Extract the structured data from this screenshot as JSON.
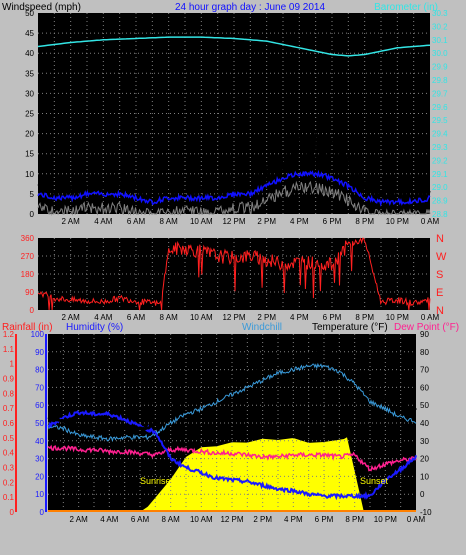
{
  "colors": {
    "background": "#c0c0c0",
    "plot": "#000000",
    "grid": "#808080",
    "windspeed": "#000000",
    "windgust_avg": "#1010ff",
    "wind_low": "#808080",
    "barometer": "#33e5e5",
    "direction": "#ff2020",
    "rainfall": "#ff2020",
    "humidity": "#1a1aff",
    "windchill": "#3a9ad9",
    "temperature": "#000000",
    "dewpoint": "#ff2090",
    "solar": "#ffff00",
    "orange_line": "#ff8000"
  },
  "chart_data": [
    {
      "type": "line",
      "title": "24 hour graph day : June 09 2014",
      "left_axis_label": "Windspeed (mph)",
      "right_axis_label": "Barometer (in)",
      "x_tick_labels": [
        "2 AM",
        "4 AM",
        "6 AM",
        "8 AM",
        "10 AM",
        "12 PM",
        "2 PM",
        "4 PM",
        "6 PM",
        "8 PM",
        "10 PM",
        "0 AM"
      ],
      "y_left_ticks": [
        0,
        5,
        10,
        15,
        20,
        25,
        30,
        35,
        40,
        45,
        50
      ],
      "ylim_left": [
        0,
        50
      ],
      "y_right_ticks": [
        "28.8",
        "28.9",
        "29.0",
        "29.1",
        "29.2",
        "29.3",
        "29.4",
        "29.5",
        "29.6",
        "29.7",
        "29.8",
        "29.9",
        "30.0",
        "30.1",
        "30.2",
        "30.3"
      ],
      "ylim_right": [
        28.8,
        30.3
      ],
      "grid": true,
      "series": [
        {
          "name": "Windspeed (mph)",
          "hours": [
            0,
            1,
            2,
            3,
            4,
            5,
            6,
            7,
            8,
            9,
            10,
            11,
            12,
            13,
            14,
            15,
            16,
            17,
            18,
            19,
            20,
            21,
            22,
            23,
            24
          ],
          "values": [
            7,
            6,
            6,
            7,
            7,
            8,
            7,
            5,
            6,
            6,
            6,
            7,
            7,
            8,
            10,
            13,
            15,
            15,
            14,
            12,
            6,
            5,
            5,
            5,
            6
          ]
        },
        {
          "name": "Average windspeed",
          "hours": [
            0,
            1,
            2,
            3,
            4,
            5,
            6,
            7,
            8,
            9,
            10,
            11,
            12,
            13,
            14,
            15,
            16,
            17,
            18,
            19,
            20,
            21,
            22,
            23,
            24
          ],
          "values": [
            5,
            4,
            4,
            5,
            5,
            5,
            4,
            3,
            4,
            4,
            4,
            4,
            5,
            5,
            7,
            9,
            10,
            10,
            9,
            7,
            4,
            3,
            3,
            3,
            4
          ]
        },
        {
          "name": "Barometer (in)",
          "hours": [
            0,
            2,
            4,
            6,
            8,
            10,
            12,
            14,
            16,
            18,
            19,
            20,
            22,
            24
          ],
          "values": [
            30.05,
            30.08,
            30.1,
            30.11,
            30.12,
            30.12,
            30.11,
            30.09,
            30.04,
            29.99,
            29.98,
            29.99,
            30.04,
            30.06
          ]
        }
      ]
    },
    {
      "type": "scatter",
      "left_axis_label": "",
      "y_left_ticks": [
        0,
        90,
        180,
        270,
        360
      ],
      "ylim_left": [
        0,
        360
      ],
      "compass_labels": [
        "N",
        "W",
        "S",
        "E",
        "N"
      ],
      "x_tick_labels": [
        "2 AM",
        "4 AM",
        "6 AM",
        "8 AM",
        "10 AM",
        "12 PM",
        "2 PM",
        "4 PM",
        "6 PM",
        "8 PM",
        "10 PM",
        "0 AM"
      ],
      "grid": true,
      "series": [
        {
          "name": "Wind direction",
          "hours": [
            0,
            1,
            2,
            3,
            4,
            5,
            6,
            7,
            7.5,
            8,
            9,
            10,
            11,
            12,
            13,
            14,
            15,
            16,
            17,
            18,
            19,
            20,
            21,
            22,
            23,
            24
          ],
          "values": [
            90,
            60,
            50,
            45,
            40,
            60,
            45,
            35,
            30,
            300,
            310,
            290,
            270,
            260,
            270,
            250,
            230,
            240,
            235,
            225,
            330,
            350,
            40,
            50,
            35,
            50
          ]
        }
      ]
    },
    {
      "type": "line",
      "labels": {
        "rainfall": "Rainfall (in)",
        "humidity": "Humidity (%)",
        "windchill": "Windchill",
        "temperature": "Temperature (°F)",
        "dewpoint": "Dew Point (°F)"
      },
      "y_rain_ticks": [
        "0",
        "0.1",
        "0.2",
        "0.3",
        "0.4",
        "0.5",
        "0.6",
        "0.7",
        "0.8",
        "0.9",
        "1",
        "1.1",
        "1.2"
      ],
      "ylim_rain": [
        0,
        1.2
      ],
      "y_hum_ticks": [
        0,
        10,
        20,
        30,
        40,
        50,
        60,
        70,
        80,
        90,
        100
      ],
      "ylim_hum": [
        0,
        100
      ],
      "y_temp_ticks": [
        -10,
        0,
        10,
        20,
        30,
        40,
        50,
        60,
        70,
        80,
        90
      ],
      "ylim_temp": [
        -10,
        90
      ],
      "x_tick_labels": [
        "2 AM",
        "4 AM",
        "6 AM",
        "8 AM",
        "10 AM",
        "12 PM",
        "2 PM",
        "4 PM",
        "6 PM",
        "8 PM",
        "10 PM",
        "0 AM"
      ],
      "sun_labels": {
        "sunrise": "Sunrise",
        "sunset": "Sunset"
      },
      "grid": true,
      "series": [
        {
          "name": "Temperature (°F)",
          "hours": [
            0,
            1,
            2,
            3,
            4,
            5,
            6,
            6.5,
            7,
            8,
            9,
            10,
            11,
            12,
            13,
            14,
            15,
            16,
            17,
            18,
            19,
            20,
            21,
            22,
            23,
            24
          ],
          "values": [
            43,
            41,
            39,
            39,
            38,
            38,
            37,
            37,
            40,
            48,
            53,
            56,
            59,
            63,
            67,
            71,
            74,
            77,
            79,
            80,
            78,
            72,
            62,
            54,
            50,
            48
          ]
        },
        {
          "name": "Windchill",
          "hours": [
            0,
            1,
            2,
            3,
            4,
            5,
            6,
            6.5,
            7,
            8,
            9,
            10,
            11,
            12,
            13,
            14,
            15,
            16,
            17,
            18,
            19,
            20,
            21,
            22,
            23,
            24
          ],
          "values": [
            38,
            37,
            33,
            32,
            31,
            32,
            32,
            32,
            34,
            40,
            45,
            48,
            52,
            56,
            60,
            64,
            68,
            70,
            72,
            72,
            69,
            62,
            52,
            48,
            43,
            41
          ]
        },
        {
          "name": "Dew Point (°F)",
          "hours": [
            0,
            1,
            2,
            3,
            4,
            5,
            6,
            7,
            8,
            9,
            10,
            11,
            12,
            13,
            14,
            15,
            16,
            17,
            18,
            19,
            20,
            21,
            22,
            23,
            24
          ],
          "values": [
            26,
            26,
            25,
            25,
            24,
            24,
            23,
            22,
            25,
            25,
            24,
            23,
            23,
            22,
            21,
            21,
            22,
            22,
            22,
            21,
            22,
            14,
            17,
            19,
            20
          ]
        },
        {
          "name": "Humidity (%)",
          "hours": [
            0,
            1,
            2,
            3,
            4,
            5,
            6,
            7,
            8,
            9,
            10,
            11,
            12,
            13,
            14,
            15,
            16,
            17,
            18,
            19,
            20,
            21,
            22,
            23,
            24
          ],
          "values": [
            48,
            53,
            56,
            55,
            55,
            52,
            48,
            45,
            30,
            25,
            22,
            19,
            18,
            17,
            15,
            13,
            12,
            10,
            9,
            9,
            9,
            9,
            18,
            24,
            31
          ]
        },
        {
          "name": "Solar radiation",
          "hours": [
            6,
            6.5,
            7,
            8,
            9,
            10,
            11,
            12,
            13,
            14,
            15,
            16,
            17,
            18,
            19,
            19.3,
            19.5,
            20.6,
            20.8
          ],
          "values": [
            0,
            3,
            8,
            20,
            30,
            35,
            38,
            39,
            39,
            40,
            40,
            40,
            40,
            40,
            41,
            41,
            42,
            0,
            0
          ]
        }
      ]
    }
  ]
}
